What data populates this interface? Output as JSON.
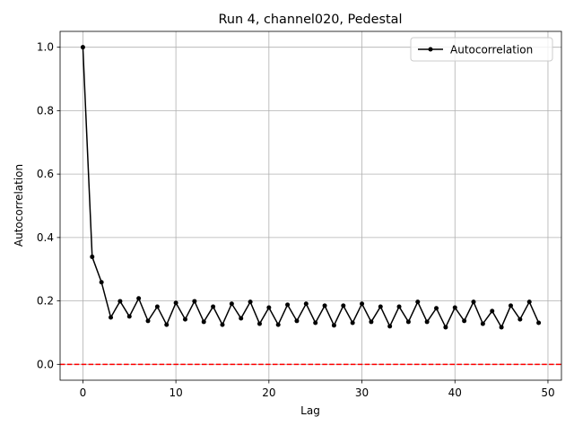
{
  "chart_data": {
    "type": "line",
    "title": "Run 4, channel020, Pedestal",
    "xlabel": "Lag",
    "ylabel": "Autocorrelation",
    "x": [
      0,
      1,
      2,
      3,
      4,
      5,
      6,
      7,
      8,
      9,
      10,
      11,
      12,
      13,
      14,
      15,
      16,
      17,
      18,
      19,
      20,
      21,
      22,
      23,
      24,
      25,
      26,
      27,
      28,
      29,
      30,
      31,
      32,
      33,
      34,
      35,
      36,
      37,
      38,
      39,
      40,
      41,
      42,
      43,
      44,
      45,
      46,
      47,
      48,
      49
    ],
    "series": [
      {
        "name": "Autocorrelation",
        "color": "#000000",
        "values": [
          1.0,
          0.339,
          0.259,
          0.148,
          0.199,
          0.151,
          0.208,
          0.137,
          0.182,
          0.125,
          0.194,
          0.142,
          0.199,
          0.134,
          0.182,
          0.125,
          0.191,
          0.145,
          0.197,
          0.128,
          0.179,
          0.125,
          0.188,
          0.137,
          0.191,
          0.131,
          0.185,
          0.123,
          0.185,
          0.131,
          0.191,
          0.134,
          0.182,
          0.12,
          0.182,
          0.134,
          0.197,
          0.134,
          0.177,
          0.117,
          0.179,
          0.137,
          0.197,
          0.128,
          0.168,
          0.117,
          0.185,
          0.142,
          0.197,
          0.131
        ]
      }
    ],
    "hline": {
      "value": 0,
      "color": "#ff0000"
    },
    "xlim": [
      -2.45,
      51.45
    ],
    "ylim": [
      -0.05,
      1.05
    ],
    "xticks": [
      0,
      10,
      20,
      30,
      40,
      50
    ],
    "yticks": [
      {
        "value": 0,
        "label": "0.0"
      },
      0.2,
      0.4,
      0.6,
      0.8,
      {
        "value": 1,
        "label": "1.0"
      }
    ],
    "grid": true,
    "legend": "upper right"
  }
}
